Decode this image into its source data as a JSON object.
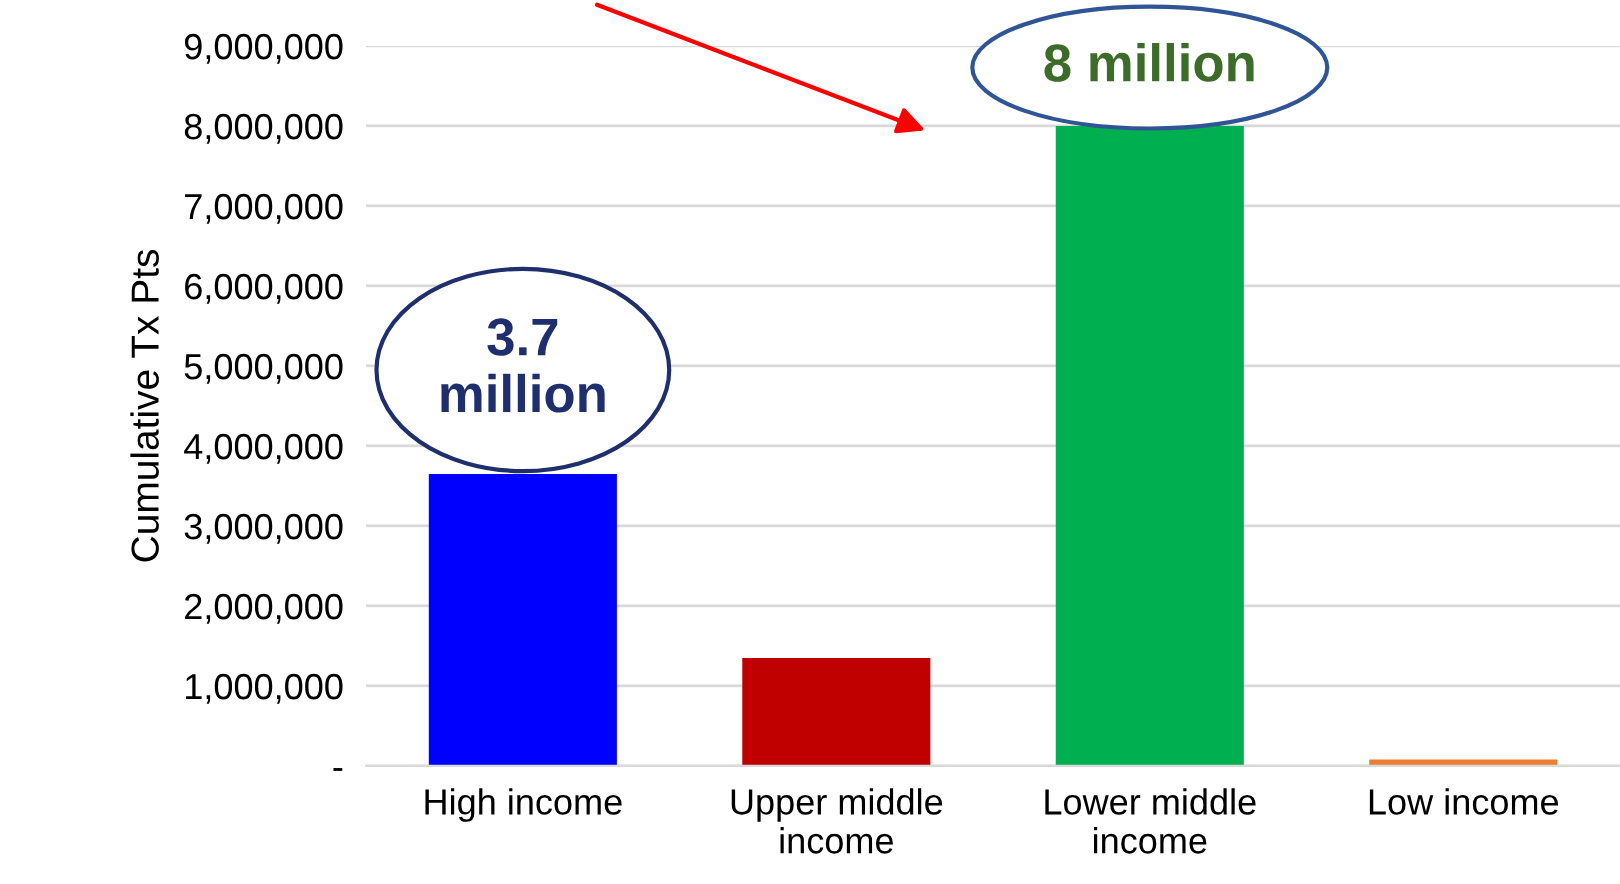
{
  "chart_data": {
    "type": "bar",
    "ylabel": "Cumulative Tx Pts",
    "categories": [
      "High income",
      "Upper middle\nincome",
      "Lower middle\nincome",
      "Low income"
    ],
    "values": [
      3650000,
      1350000,
      8000000,
      80000
    ],
    "colors": [
      "#0000ff",
      "#c00000",
      "#00b050",
      "#ed7d31"
    ],
    "ylim": [
      0,
      9000000
    ],
    "yticks": [
      {
        "value": 0,
        "label": "-"
      },
      {
        "value": 1000000,
        "label": "1,000,000"
      },
      {
        "value": 2000000,
        "label": "2,000,000"
      },
      {
        "value": 3000000,
        "label": "3,000,000"
      },
      {
        "value": 4000000,
        "label": "4,000,000"
      },
      {
        "value": 5000000,
        "label": "5,000,000"
      },
      {
        "value": 6000000,
        "label": "6,000,000"
      },
      {
        "value": 7000000,
        "label": "7,000,000"
      },
      {
        "value": 8000000,
        "label": "8,000,000"
      },
      {
        "value": 9000000,
        "label": "9,000,000"
      }
    ],
    "grid": "y",
    "annotations": [
      "3.7\nmillion",
      "8 million"
    ]
  }
}
